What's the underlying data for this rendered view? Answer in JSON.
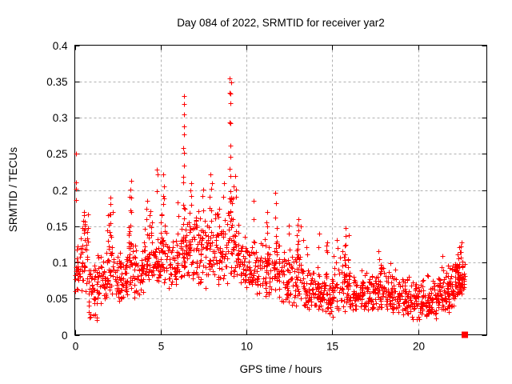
{
  "chart_data": {
    "type": "scatter",
    "title": "Day 084 of 2022, SRMTID for receiver yar2",
    "xlabel": "GPS time / hours",
    "ylabel": "SRMTID / TECUs",
    "xlim": [
      0,
      24
    ],
    "ylim": [
      0,
      0.4
    ],
    "xticks": [
      {
        "v": 0,
        "label": "0"
      },
      {
        "v": 5,
        "label": "5"
      },
      {
        "v": 10,
        "label": "10"
      },
      {
        "v": 15,
        "label": "15"
      },
      {
        "v": 20,
        "label": "20"
      }
    ],
    "yticks": [
      {
        "v": 0,
        "label": "0"
      },
      {
        "v": 0.05,
        "label": "0.05"
      },
      {
        "v": 0.1,
        "label": "0.1"
      },
      {
        "v": 0.15,
        "label": "0.15"
      },
      {
        "v": 0.2,
        "label": "0.2"
      },
      {
        "v": 0.25,
        "label": "0.25"
      },
      {
        "v": 0.3,
        "label": "0.3"
      },
      {
        "v": 0.35,
        "label": "0.35"
      },
      {
        "v": 0.4,
        "label": "0.4"
      }
    ],
    "grid": {
      "show": true,
      "style": "dashed",
      "color": "#b0b0b0"
    },
    "legend": "none",
    "marker": {
      "shape": "plus",
      "color": "#ff0000",
      "size": 7
    },
    "axis_color": "#000000",
    "background": "#ffffff",
    "seed": 84,
    "band_segments": [
      [
        0.0,
        0.3,
        0.055,
        0.135,
        25
      ],
      [
        0.3,
        0.8,
        0.05,
        0.175,
        40
      ],
      [
        0.8,
        1.3,
        0.02,
        0.12,
        40
      ],
      [
        1.3,
        1.8,
        0.04,
        0.13,
        40
      ],
      [
        1.8,
        2.3,
        0.05,
        0.185,
        45
      ],
      [
        2.3,
        2.8,
        0.045,
        0.125,
        40
      ],
      [
        2.8,
        3.1,
        0.05,
        0.13,
        25
      ],
      [
        3.1,
        3.4,
        0.06,
        0.2,
        30
      ],
      [
        3.4,
        4.0,
        0.05,
        0.15,
        45
      ],
      [
        4.0,
        4.5,
        0.07,
        0.185,
        40
      ],
      [
        4.5,
        5.0,
        0.06,
        0.155,
        40
      ],
      [
        5.0,
        5.4,
        0.07,
        0.21,
        35
      ],
      [
        5.4,
        6.0,
        0.06,
        0.14,
        45
      ],
      [
        6.0,
        6.6,
        0.07,
        0.2,
        50
      ],
      [
        6.6,
        7.2,
        0.075,
        0.21,
        50
      ],
      [
        7.2,
        7.8,
        0.065,
        0.2,
        45
      ],
      [
        7.8,
        8.3,
        0.07,
        0.21,
        40
      ],
      [
        8.3,
        8.9,
        0.07,
        0.18,
        45
      ],
      [
        8.9,
        9.3,
        0.08,
        0.22,
        35
      ],
      [
        9.3,
        9.9,
        0.07,
        0.17,
        45
      ],
      [
        9.9,
        10.6,
        0.06,
        0.15,
        50
      ],
      [
        10.6,
        11.3,
        0.05,
        0.165,
        50
      ],
      [
        11.3,
        12.0,
        0.05,
        0.155,
        50
      ],
      [
        12.0,
        12.7,
        0.04,
        0.13,
        50
      ],
      [
        12.7,
        13.3,
        0.04,
        0.155,
        45
      ],
      [
        13.3,
        14.0,
        0.035,
        0.1,
        50
      ],
      [
        14.0,
        14.7,
        0.03,
        0.105,
        55
      ],
      [
        14.7,
        15.4,
        0.02,
        0.125,
        55
      ],
      [
        15.4,
        16.0,
        0.03,
        0.145,
        50
      ],
      [
        16.0,
        16.7,
        0.03,
        0.09,
        55
      ],
      [
        16.7,
        17.4,
        0.03,
        0.1,
        55
      ],
      [
        17.4,
        18.1,
        0.035,
        0.105,
        55
      ],
      [
        18.1,
        18.8,
        0.03,
        0.1,
        55
      ],
      [
        18.8,
        19.5,
        0.025,
        0.085,
        55
      ],
      [
        19.5,
        20.2,
        0.015,
        0.08,
        55
      ],
      [
        20.2,
        20.9,
        0.025,
        0.085,
        60
      ],
      [
        20.9,
        21.6,
        0.02,
        0.1,
        60
      ],
      [
        21.6,
        22.15,
        0.03,
        0.115,
        55
      ],
      [
        22.15,
        22.6,
        0.05,
        0.125,
        65
      ],
      [
        22.6,
        22.75,
        0.06,
        0.1,
        10
      ]
    ],
    "spike_columns": [
      {
        "x": 0.08,
        "ys": [
          0.25,
          0.21,
          0.2,
          0.185
        ]
      },
      {
        "x": 0.55,
        "ys": [
          0.17,
          0.165,
          0.155,
          0.15,
          0.14
        ]
      },
      {
        "x": 1.3,
        "ys": [
          0.022,
          0.02
        ]
      },
      {
        "x": 2.05,
        "ys": [
          0.19,
          0.18,
          0.165,
          0.155
        ]
      },
      {
        "x": 3.25,
        "ys": [
          0.215,
          0.2,
          0.19,
          0.17
        ]
      },
      {
        "x": 4.2,
        "ys": [
          0.185,
          0.175,
          0.16
        ]
      },
      {
        "x": 4.8,
        "ys": [
          0.23,
          0.22,
          0.2
        ]
      },
      {
        "x": 5.15,
        "ys": [
          0.22,
          0.205,
          0.19,
          0.18
        ]
      },
      {
        "x": 6.35,
        "ys": [
          0.33,
          0.32,
          0.305,
          0.29,
          0.275,
          0.26,
          0.25,
          0.235,
          0.22,
          0.21
        ]
      },
      {
        "x": 6.75,
        "ys": [
          0.21,
          0.2,
          0.19,
          0.18
        ]
      },
      {
        "x": 7.45,
        "ys": [
          0.2,
          0.19,
          0.17
        ]
      },
      {
        "x": 7.95,
        "ys": [
          0.22,
          0.21,
          0.2
        ]
      },
      {
        "x": 8.7,
        "ys": [
          0.21,
          0.19
        ]
      },
      {
        "x": 9.05,
        "ys": [
          0.353,
          0.348,
          0.335,
          0.332,
          0.32,
          0.295,
          0.291,
          0.26,
          0.245,
          0.23,
          0.22,
          0.2,
          0.185,
          0.17
        ]
      },
      {
        "x": 9.35,
        "ys": [
          0.22,
          0.2,
          0.19
        ]
      },
      {
        "x": 10.4,
        "ys": [
          0.185,
          0.16
        ]
      },
      {
        "x": 11.2,
        "ys": [
          0.17,
          0.155,
          0.15
        ]
      },
      {
        "x": 11.7,
        "ys": [
          0.195,
          0.18,
          0.16
        ]
      },
      {
        "x": 12.5,
        "ys": [
          0.15,
          0.14
        ]
      },
      {
        "x": 13.0,
        "ys": [
          0.16,
          0.15,
          0.145,
          0.13,
          0.12
        ]
      },
      {
        "x": 13.5,
        "ys": [
          0.12,
          0.11
        ]
      },
      {
        "x": 14.2,
        "ys": [
          0.14,
          0.12
        ]
      },
      {
        "x": 14.65,
        "ys": [
          0.13,
          0.125,
          0.117
        ]
      },
      {
        "x": 15.3,
        "ys": [
          0.13,
          0.12
        ]
      },
      {
        "x": 15.75,
        "ys": [
          0.148,
          0.135,
          0.125,
          0.11
        ]
      },
      {
        "x": 17.7,
        "ys": [
          0.115,
          0.105
        ]
      },
      {
        "x": 18.4,
        "ys": [
          0.1
        ]
      },
      {
        "x": 21.4,
        "ys": [
          0.11,
          0.095
        ]
      },
      {
        "x": 22.3,
        "ys": [
          0.11
        ]
      },
      {
        "x": 22.5,
        "ys": [
          0.128,
          0.122,
          0.115
        ]
      }
    ],
    "special_points": [
      {
        "x": 22.72,
        "y": 0,
        "marker": "filled-square",
        "color": "#ff0000",
        "size": 8
      }
    ]
  }
}
